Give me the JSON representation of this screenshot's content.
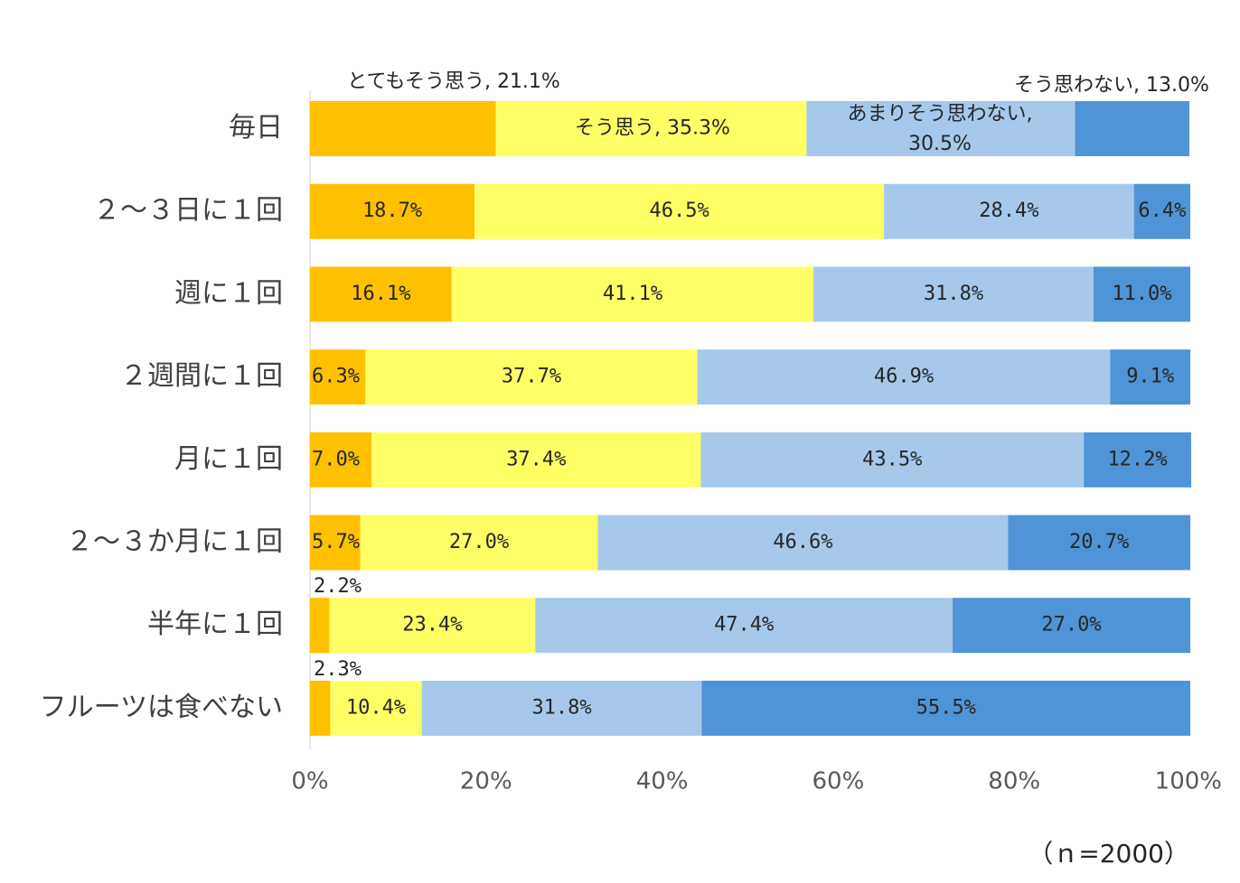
{
  "chart_data": {
    "type": "bar",
    "orientation": "horizontal",
    "stacked": true,
    "normalized": true,
    "categories": [
      "毎日",
      "２～３日に１回",
      "週に１回",
      "２週間に１回",
      "月に１回",
      "２～３か月に１回",
      "半年に１回",
      "フルーツは食べない"
    ],
    "series": [
      {
        "name": "とてもそう思う",
        "color": "#FFC000",
        "values": [
          21.1,
          18.7,
          16.1,
          6.3,
          7.0,
          5.7,
          2.2,
          2.3
        ]
      },
      {
        "name": "そう思う",
        "color": "#FFFF66",
        "values": [
          35.3,
          46.5,
          41.1,
          37.7,
          37.4,
          27.0,
          23.4,
          10.4
        ]
      },
      {
        "name": "あまりそう思わない",
        "color": "#A6C8EA",
        "values": [
          30.5,
          28.4,
          31.8,
          46.9,
          43.5,
          46.6,
          47.4,
          31.8
        ]
      },
      {
        "name": "そう思わない",
        "color": "#4F94D6",
        "values": [
          13.0,
          6.4,
          11.0,
          9.1,
          12.2,
          20.7,
          27.0,
          55.5
        ]
      }
    ],
    "data_labels": [
      [
        "とてもそう思う, 21.1%",
        "そう思う, 35.3%",
        "あまりそう思わない, 30.5%",
        "そう思わない, 13.0%"
      ],
      [
        "18.7%",
        "46.5%",
        "28.4%",
        "6.4%"
      ],
      [
        "16.1%",
        "41.1%",
        "31.8%",
        "11.0%"
      ],
      [
        "6.3%",
        "37.7%",
        "46.9%",
        "9.1%"
      ],
      [
        "7.0%",
        "37.4%",
        "43.5%",
        "12.2%"
      ],
      [
        "5.7%",
        "27.0%",
        "46.6%",
        "20.7%"
      ],
      [
        "2.2%",
        "23.4%",
        "47.4%",
        "27.0%"
      ],
      [
        "2.3%",
        "10.4%",
        "31.8%",
        "55.5%"
      ]
    ],
    "xlim": [
      0,
      100
    ],
    "xticks": [
      "0%",
      "20%",
      "40%",
      "60%",
      "80%",
      "100%"
    ],
    "grid": false,
    "legend": "none",
    "note": "（ｎ=2000）"
  }
}
